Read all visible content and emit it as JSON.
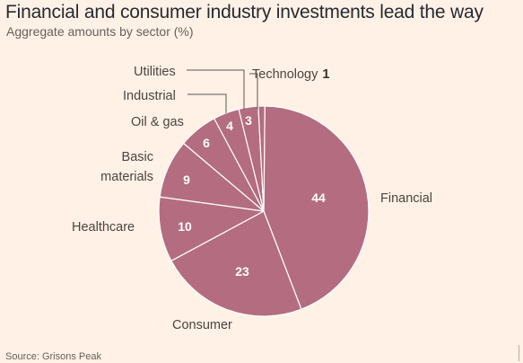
{
  "title": "Financial and consumer industry investments lead the way",
  "subtitle": "Aggregate amounts by sector (%)",
  "source": "Source: Grisons Peak",
  "colors": {
    "background": "#fff1e5",
    "slice": "#b46c80",
    "slice_border": "#ffffff",
    "leader": "#5a5552"
  },
  "chart_data": {
    "type": "pie",
    "categories": [
      "Financial",
      "Consumer",
      "Healthcare",
      "Basic materials",
      "Oil & gas",
      "Industrial",
      "Utilities",
      "Technology"
    ],
    "values": [
      44,
      23,
      10,
      9,
      6,
      4,
      3,
      1
    ],
    "category_labels": {
      "financial": "Financial",
      "consumer": "Consumer",
      "healthcare": "Healthcare",
      "basic_line1": "Basic",
      "basic_line2": "materials",
      "oilgas": "Oil & gas",
      "industrial": "Industrial",
      "utilities": "Utilities",
      "technology": "Technology"
    },
    "value_labels": {
      "financial": "44",
      "consumer": "23",
      "healthcare": "10",
      "basic": "9",
      "oilgas": "6",
      "industrial": "4",
      "utilities": "3",
      "technology": "1"
    }
  }
}
